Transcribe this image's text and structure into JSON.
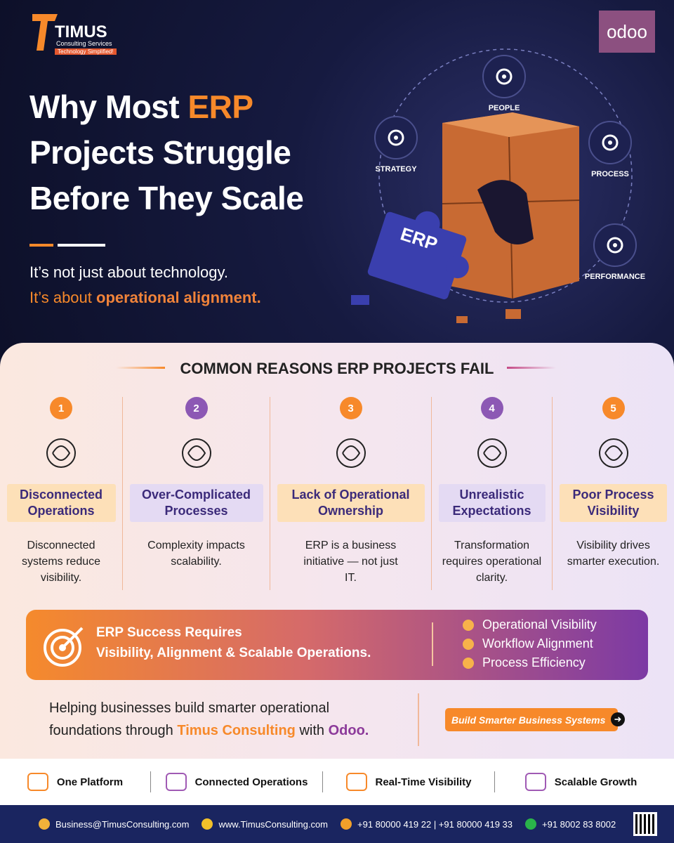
{
  "logo": {
    "name": "TIMUS",
    "line1": "Consulting Services",
    "line2": "Technology Simplified!"
  },
  "partner_logo": "odoo",
  "hero": {
    "title_line1_prefix": "Why Most ",
    "title_line1_highlight": "ERP",
    "title_line2": "Projects Struggle",
    "title_line3": "Before They Scale",
    "subtitle_line1": "It’s not just about technology.",
    "subtitle_line2_prefix": "It’s about ",
    "subtitle_line2_highlight": "operational alignment.",
    "diagram": {
      "people": "PEOPLE",
      "strategy": "STRATEGY",
      "process": "PROCESS",
      "performance": "PERFORMANCE",
      "piece": "ERP"
    }
  },
  "reasons": {
    "title": "COMMON REASONS ERP PROJECTS FAIL",
    "items": [
      {
        "number": "1",
        "title": "Disconnected Operations",
        "description": "Disconnected systems reduce visibility."
      },
      {
        "number": "2",
        "title": "Over-Complicated Processes",
        "description": "Complexity impacts scalability."
      },
      {
        "number": "3",
        "title": "Lack of Operational Ownership",
        "description": "ERP is a business initiative — not just IT."
      },
      {
        "number": "4",
        "title": "Unrealistic Expectations",
        "description": "Transformation requires operational clarity."
      },
      {
        "number": "5",
        "title": "Poor Process Visibility",
        "description": "Visibility drives smarter execution."
      }
    ]
  },
  "banner": {
    "title_line1": "ERP Success Requires",
    "title_line2": "Visibility, Alignment & Scalable Operations.",
    "checklist": [
      "Operational Visibility",
      "Workflow Alignment",
      "Process Efficiency"
    ]
  },
  "closing": {
    "text_prefix": "Helping businesses build smarter operational foundations through ",
    "company": "Timus Consulting",
    "text_middle": " with ",
    "partner": "Odoo.",
    "button": "Build Smarter Business Systems"
  },
  "features": [
    "One Platform",
    "Connected Operations",
    "Real-Time Visibility",
    "Scalable Growth"
  ],
  "contact": {
    "email": "Business@TimusConsulting.com",
    "website": "www.TimusConsulting.com",
    "phone": "+91  80000 419 22 | +91 80000 419 33",
    "whatsapp": "+91 8002 83 8002"
  }
}
